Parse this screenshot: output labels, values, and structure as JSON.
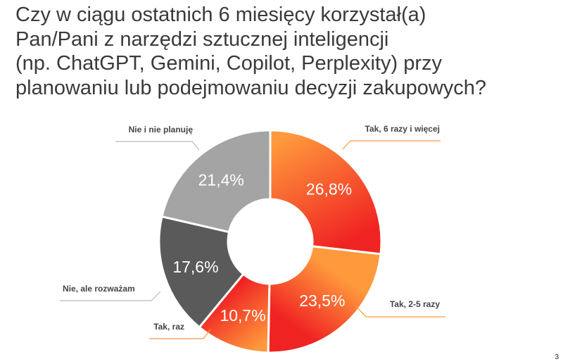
{
  "question_lines": [
    "Czy w ciągu ostatnich 6 miesięcy korzystał(a)",
    "Pan/Pani z narzędzi sztucznej inteligencji",
    "(np. ChatGPT, Gemini, Copilot, Perplexity) przy",
    "planowaniu lub podejmowaniu decyzji zakupowych?"
  ],
  "page_number": "3",
  "chart_data": {
    "type": "pie",
    "title": "Czy w ciągu ostatnich 6 miesięcy korzystał(a) Pan/Pani z narzędzi sztucznej inteligencji (np. ChatGPT, Gemini, Copilot, Perplexity) przy planowaniu lub podejmowaniu decyzji zakupowych?",
    "donut": true,
    "start_angle_deg": 0,
    "direction": "clockwise",
    "slices": [
      {
        "label": "Tak, 6 razy i więcej",
        "value": 26.8,
        "display": "26,8%",
        "colors": [
          "#ff9a3c",
          "#f02323"
        ]
      },
      {
        "label": "Tak, 2-5 razy",
        "value": 23.5,
        "display": "23,5%",
        "colors": [
          "#ff9a3c",
          "#f02323"
        ]
      },
      {
        "label": "Tak, raz",
        "value": 10.7,
        "display": "10,7%",
        "colors": [
          "#ff9a3c",
          "#f02323"
        ]
      },
      {
        "label": "Nie, ale rozważam",
        "value": 17.6,
        "display": "17,6%",
        "colors": [
          "#5a5a5a",
          "#5a5a5a"
        ]
      },
      {
        "label": "Nie i nie planuję",
        "value": 21.4,
        "display": "21,4%",
        "colors": [
          "#a4a4a4",
          "#a4a4a4"
        ]
      }
    ]
  }
}
